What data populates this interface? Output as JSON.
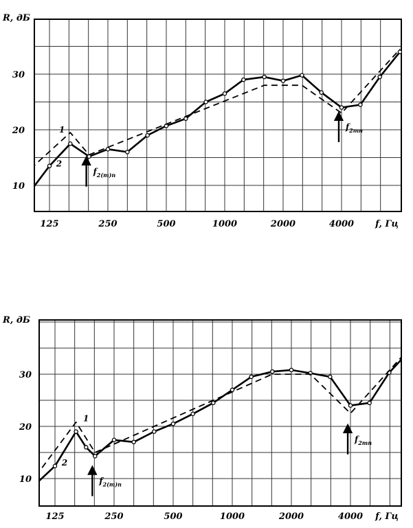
{
  "chart_data": [
    {
      "type": "line",
      "ylabel": "R, дБ",
      "xlabel": "f, Гц",
      "x_scale": "log2",
      "x_ticks": [
        "125",
        "250",
        "500",
        "1000",
        "2000",
        "4000"
      ],
      "x_tick_values": [
        125,
        250,
        500,
        1000,
        2000,
        4000
      ],
      "y_ticks": [
        "10",
        "20",
        "30"
      ],
      "y_tick_values": [
        10,
        20,
        30
      ],
      "grid": true,
      "series": [
        {
          "name": "2",
          "style": "solid",
          "markers": true,
          "points": [
            [
              100,
              9
            ],
            [
              125,
              13.5
            ],
            [
              160,
              17.5
            ],
            [
              200,
              15.2
            ],
            [
              250,
              16.5
            ],
            [
              315,
              16
            ],
            [
              400,
              19
            ],
            [
              500,
              20.7
            ],
            [
              630,
              22
            ],
            [
              800,
              25
            ],
            [
              1000,
              26.5
            ],
            [
              1250,
              29
            ],
            [
              1600,
              29.5
            ],
            [
              2000,
              28.8
            ],
            [
              2500,
              29.8
            ],
            [
              3150,
              26.7
            ],
            [
              4000,
              24
            ],
            [
              5000,
              24.5
            ],
            [
              6300,
              29.5
            ],
            [
              8000,
              34
            ]
          ]
        },
        {
          "name": "1",
          "style": "dashed",
          "markers": false,
          "points": [
            [
              100,
              13
            ],
            [
              160,
              19.5
            ],
            [
              200,
              15.5
            ],
            [
              1600,
              28
            ],
            [
              2500,
              28
            ],
            [
              4000,
              23
            ],
            [
              8000,
              34.5
            ]
          ]
        }
      ],
      "annotations": [
        {
          "label": "1",
          "x": 145,
          "y": 19.5
        },
        {
          "label": "2",
          "x": 140,
          "y": 13.4
        },
        {
          "label": "f",
          "sub": "2(m)n",
          "x": 210,
          "y": 12
        },
        {
          "label": "f",
          "sub": "2mn",
          "x": 4200,
          "y": 20
        }
      ]
    },
    {
      "type": "line",
      "ylabel": "R, дБ",
      "xlabel": "f, Гц",
      "x_scale": "log2",
      "x_ticks": [
        "125",
        "250",
        "500",
        "1000",
        "2000",
        "4000"
      ],
      "x_tick_values": [
        125,
        250,
        500,
        1000,
        2000,
        4000
      ],
      "y_ticks": [
        "10",
        "20",
        "30"
      ],
      "y_tick_values": [
        10,
        20,
        30
      ],
      "grid": true,
      "series": [
        {
          "name": "2",
          "style": "solid",
          "markers": true,
          "points": [
            [
              100,
              9
            ],
            [
              125,
              12.4
            ],
            [
              160,
              19
            ],
            [
              180,
              16
            ],
            [
              200,
              14.3
            ],
            [
              250,
              17.4
            ],
            [
              315,
              17
            ],
            [
              400,
              19
            ],
            [
              500,
              20.5
            ],
            [
              630,
              22.4
            ],
            [
              800,
              24.5
            ],
            [
              1000,
              27
            ],
            [
              1250,
              29.5
            ],
            [
              1600,
              30.5
            ],
            [
              2000,
              30.8
            ],
            [
              2500,
              30.2
            ],
            [
              3150,
              29.5
            ],
            [
              4000,
              24
            ],
            [
              5000,
              24.5
            ],
            [
              6300,
              30.3
            ],
            [
              8000,
              34.5
            ]
          ]
        },
        {
          "name": "1",
          "style": "dashed",
          "markers": false,
          "points": [
            [
              100,
              10.5
            ],
            [
              160,
              20.8
            ],
            [
              200,
              15
            ],
            [
              1600,
              30
            ],
            [
              2500,
              30
            ],
            [
              4000,
              22.5
            ],
            [
              8000,
              35
            ]
          ]
        }
      ],
      "annotations": [
        {
          "label": "1",
          "x": 180,
          "y": 21
        },
        {
          "label": "2",
          "x": 140,
          "y": 12.5
        },
        {
          "label": "f",
          "sub": "2(m)n",
          "x": 210,
          "y": 9
        },
        {
          "label": "f",
          "sub": "2mn",
          "x": 4200,
          "y": 17
        }
      ]
    }
  ]
}
